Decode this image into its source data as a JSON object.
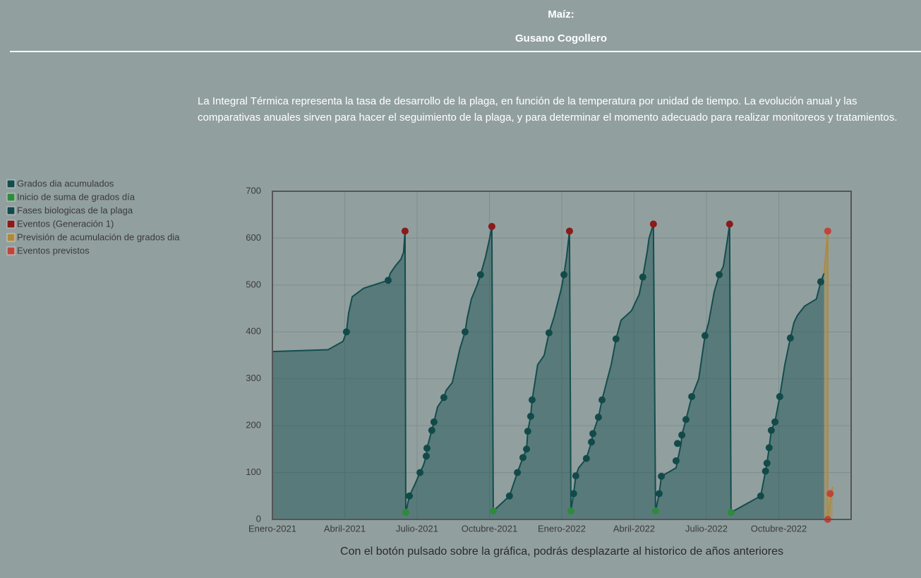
{
  "header": {
    "crop": "Maíz:",
    "pest": "Gusano Cogollero"
  },
  "description": "La Integral Térmica representa la tasa de desarrollo de la plaga, en función de la temperatura por unidad de tiempo. La evolución anual y las comparativas anuales sirven para hacer el seguimiento de la plaga, y para determinar el momento adecuado para realizar monitoreos y tratamientos.",
  "footer_note": "Con el botón pulsado sobre la gráfica, podrás desplazarte al historico de años anteriores",
  "chart_data": {
    "type": "line",
    "xlim": [
      0,
      24
    ],
    "xticks": [
      {
        "value": 0,
        "label": "Enero-2021"
      },
      {
        "value": 3,
        "label": "Abril-2021"
      },
      {
        "value": 6,
        "label": "Julio-2021"
      },
      {
        "value": 9,
        "label": "Octubre-2021"
      },
      {
        "value": 12,
        "label": "Enero-2022"
      },
      {
        "value": 15,
        "label": "Abril-2022"
      },
      {
        "value": 18,
        "label": "Julio-2022"
      },
      {
        "value": 21,
        "label": "Octubre-2022"
      }
    ],
    "ylim": [
      0,
      700
    ],
    "yticks": [
      0,
      100,
      200,
      300,
      400,
      500,
      600,
      700
    ],
    "grid": true,
    "legend": "left",
    "series": [
      {
        "name": "Grados dia acumulados",
        "type": "area",
        "color": "#134d4d",
        "x": [
          0,
          2.31,
          2.93,
          3.07,
          3.16,
          3.31,
          3.78,
          4.8,
          4.89,
          5.09,
          5.33,
          5.44,
          5.5,
          5.53,
          5.68,
          5.91,
          6.12,
          6.26,
          6.38,
          6.41,
          6.61,
          6.7,
          6.85,
          7.11,
          7.2,
          7.46,
          7.67,
          7.78,
          7.99,
          8.08,
          8.25,
          8.49,
          8.63,
          8.84,
          9.01,
          9.1,
          9.16,
          9.83,
          10.16,
          10.39,
          10.54,
          10.59,
          10.71,
          10.77,
          11.0,
          11.27,
          11.47,
          11.67,
          11.82,
          11.97,
          12.09,
          12.2,
          12.32,
          12.38,
          12.49,
          12.58,
          12.7,
          13.02,
          13.23,
          13.29,
          13.52,
          13.67,
          13.87,
          14.05,
          14.25,
          14.46,
          14.89,
          15.21,
          15.36,
          15.54,
          15.62,
          15.8,
          15.89,
          16.04,
          16.13,
          16.74,
          16.8,
          16.95,
          16.98,
          17.15,
          17.39,
          17.68,
          17.94,
          18.09,
          18.32,
          18.53,
          18.7,
          18.88,
          18.96,
          19.02,
          20.25,
          20.45,
          20.51,
          20.6,
          20.69,
          20.84,
          21.04,
          21.25,
          21.48,
          21.63,
          21.77,
          22.07,
          22.56,
          22.74,
          22.88
        ],
        "values": [
          358,
          362,
          380,
          400,
          440,
          475,
          493,
          510,
          525,
          540,
          555,
          570,
          615,
          15,
          50,
          75,
          100,
          115,
          135,
          152,
          190,
          208,
          240,
          260,
          275,
          292,
          340,
          365,
          400,
          430,
          470,
          500,
          522,
          560,
          600,
          625,
          18,
          50,
          100,
          132,
          150,
          188,
          220,
          255,
          330,
          350,
          398,
          430,
          460,
          490,
          522,
          560,
          615,
          18,
          55,
          93,
          110,
          130,
          165,
          183,
          218,
          255,
          295,
          330,
          385,
          425,
          445,
          480,
          517,
          570,
          600,
          630,
          18,
          55,
          92,
          110,
          125,
          162,
          180,
          213,
          262,
          300,
          392,
          420,
          485,
          522,
          540,
          600,
          630,
          15,
          50,
          103,
          120,
          153,
          190,
          208,
          262,
          330,
          387,
          420,
          435,
          455,
          470,
          507,
          525
        ]
      },
      {
        "name": "Inicio de suma de grados día",
        "type": "scatter",
        "color": "#2e8b3e",
        "x": [
          5.53,
          9.16,
          12.38,
          15.89,
          19.02
        ],
        "values": [
          15,
          18,
          18,
          18,
          15
        ]
      },
      {
        "name": "Fases biologicas de la plaga",
        "type": "scatter",
        "color": "#124a4a",
        "x": [
          3.07,
          4.8,
          5.68,
          6.12,
          6.38,
          6.41,
          6.61,
          6.7,
          7.11,
          7.99,
          8.63,
          9.83,
          10.16,
          10.39,
          10.54,
          10.59,
          10.71,
          10.77,
          11.47,
          12.09,
          12.49,
          12.58,
          13.02,
          13.23,
          13.29,
          13.52,
          13.67,
          14.25,
          15.36,
          16.04,
          16.13,
          16.74,
          16.8,
          16.98,
          17.15,
          17.39,
          17.94,
          18.53,
          20.25,
          20.45,
          20.51,
          20.6,
          20.69,
          20.84,
          21.04,
          21.48,
          22.74
        ],
        "values": [
          400,
          510,
          50,
          100,
          135,
          152,
          190,
          208,
          260,
          400,
          522,
          50,
          100,
          132,
          150,
          188,
          220,
          255,
          398,
          522,
          55,
          93,
          130,
          165,
          183,
          218,
          255,
          385,
          517,
          55,
          92,
          125,
          162,
          180,
          213,
          262,
          392,
          522,
          50,
          103,
          120,
          153,
          190,
          208,
          262,
          387,
          507
        ]
      },
      {
        "name": "Eventos (Generación 1)",
        "type": "scatter",
        "color": "#8b1a1a",
        "x": [
          5.5,
          9.1,
          12.32,
          15.8,
          18.96
        ],
        "values": [
          615,
          625,
          615,
          630,
          630
        ]
      },
      {
        "name": "Previsión de acumulación de grados dia",
        "type": "area",
        "color": "#b08a3a",
        "x": [
          22.88,
          23.03,
          23.03,
          23.23
        ],
        "values": [
          525,
          615,
          0,
          70
        ]
      },
      {
        "name": "Eventos previstos",
        "type": "scatter",
        "color": "#c0443a",
        "x": [
          23.03,
          23.03,
          23.13
        ],
        "values": [
          615,
          0,
          55
        ]
      }
    ]
  }
}
